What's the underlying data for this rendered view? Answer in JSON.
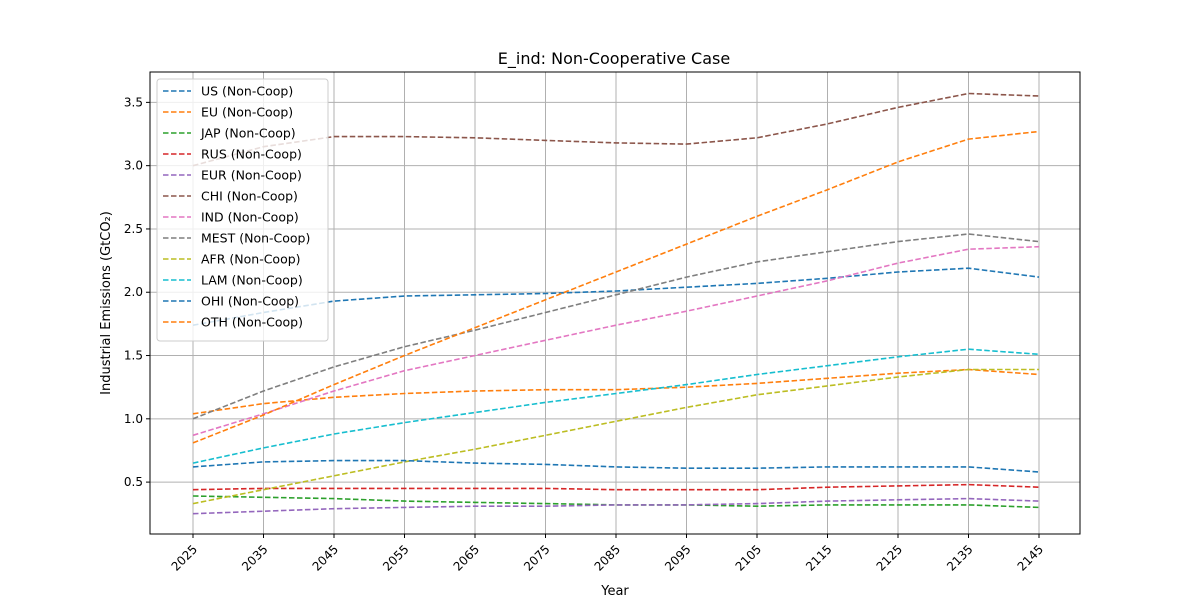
{
  "chart_data": {
    "type": "line",
    "title": "E_ind: Non-Cooperative Case",
    "xlabel": "Year",
    "ylabel": "Industrial Emissions (GtCO₂)",
    "categories": [
      "2025",
      "2035",
      "2045",
      "2055",
      "2065",
      "2075",
      "2085",
      "2095",
      "2105",
      "2115",
      "2125",
      "2135",
      "2145"
    ],
    "yticks": [
      0.5,
      1.0,
      1.5,
      2.0,
      2.5,
      3.0,
      3.5
    ],
    "ylim": [
      0.09,
      3.74
    ],
    "grid": true,
    "legend_position": "top-left",
    "series": [
      {
        "name": "US (Non-Coop)",
        "color": "#1f77b4",
        "values": [
          1.74,
          1.84,
          1.93,
          1.97,
          1.98,
          1.99,
          2.01,
          2.04,
          2.07,
          2.11,
          2.16,
          2.19,
          2.12
        ]
      },
      {
        "name": "EU (Non-Coop)",
        "color": "#ff7f0e",
        "values": [
          1.04,
          1.12,
          1.17,
          1.2,
          1.22,
          1.23,
          1.23,
          1.25,
          1.28,
          1.32,
          1.36,
          1.39,
          1.35
        ]
      },
      {
        "name": "JAP (Non-Coop)",
        "color": "#2ca02c",
        "values": [
          0.39,
          0.38,
          0.37,
          0.35,
          0.34,
          0.33,
          0.32,
          0.32,
          0.31,
          0.32,
          0.32,
          0.32,
          0.3
        ]
      },
      {
        "name": "RUS (Non-Coop)",
        "color": "#d62728",
        "values": [
          0.44,
          0.45,
          0.45,
          0.45,
          0.45,
          0.45,
          0.44,
          0.44,
          0.44,
          0.46,
          0.47,
          0.48,
          0.46
        ]
      },
      {
        "name": "EUR (Non-Coop)",
        "color": "#9467bd",
        "values": [
          0.25,
          0.27,
          0.29,
          0.3,
          0.31,
          0.31,
          0.32,
          0.32,
          0.33,
          0.35,
          0.36,
          0.37,
          0.35
        ]
      },
      {
        "name": "CHI (Non-Coop)",
        "color": "#8c564b",
        "values": [
          3.0,
          3.15,
          3.23,
          3.23,
          3.22,
          3.2,
          3.18,
          3.17,
          3.22,
          3.33,
          3.46,
          3.57,
          3.55
        ]
      },
      {
        "name": "IND (Non-Coop)",
        "color": "#e377c2",
        "values": [
          0.87,
          1.04,
          1.22,
          1.38,
          1.5,
          1.62,
          1.74,
          1.85,
          1.97,
          2.09,
          2.23,
          2.34,
          2.36
        ]
      },
      {
        "name": "MEST (Non-Coop)",
        "color": "#7f7f7f",
        "values": [
          1.0,
          1.22,
          1.41,
          1.57,
          1.7,
          1.84,
          1.98,
          2.12,
          2.24,
          2.32,
          2.4,
          2.46,
          2.4
        ]
      },
      {
        "name": "AFR (Non-Coop)",
        "color": "#bcbd22",
        "values": [
          0.33,
          0.44,
          0.55,
          0.66,
          0.76,
          0.87,
          0.98,
          1.09,
          1.19,
          1.26,
          1.33,
          1.39,
          1.39
        ]
      },
      {
        "name": "LAM (Non-Coop)",
        "color": "#17becf",
        "values": [
          0.65,
          0.77,
          0.88,
          0.97,
          1.05,
          1.13,
          1.2,
          1.27,
          1.35,
          1.42,
          1.49,
          1.55,
          1.51
        ]
      },
      {
        "name": "OHI (Non-Coop)",
        "color": "#1f77b4",
        "values": [
          0.62,
          0.66,
          0.67,
          0.67,
          0.65,
          0.64,
          0.62,
          0.61,
          0.61,
          0.62,
          0.62,
          0.62,
          0.58
        ]
      },
      {
        "name": "OTH (Non-Coop)",
        "color": "#ff7f0e",
        "values": [
          0.81,
          1.03,
          1.27,
          1.5,
          1.72,
          1.94,
          2.16,
          2.38,
          2.6,
          2.81,
          3.03,
          3.21,
          3.27
        ]
      }
    ]
  }
}
